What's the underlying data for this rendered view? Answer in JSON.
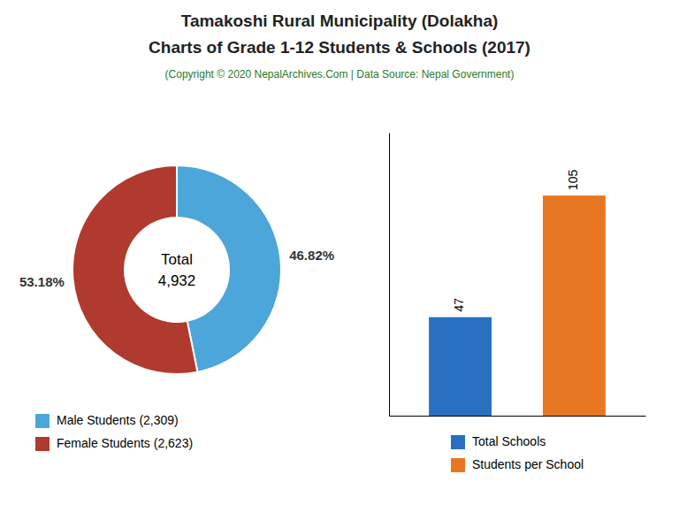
{
  "chart_data": [
    {
      "type": "donut",
      "title": "Tamakoshi Rural Municipality (Dolakha)",
      "subtitle": "Charts of Grade 1-12 Students & Schools (2017)",
      "annotations": [
        "(Copyright © 2020 NepalArchives.Com | Data Source: Nepal Government)",
        "Total",
        "4,932"
      ],
      "categories": [
        "Male Students (2,309)",
        "Female Students (2,623)"
      ],
      "values": [
        46.82,
        53.18
      ],
      "value_labels": [
        "46.82%",
        "53.18%"
      ],
      "colors": [
        "#4da6d9",
        "#b03a2e"
      ],
      "data_labels": true,
      "legend": "bottom"
    },
    {
      "type": "bar",
      "categories": [
        "Total Schools",
        "Students per School"
      ],
      "values": [
        47,
        105
      ],
      "colors": [
        "#2970c0",
        "#e87722"
      ],
      "ylim": [
        0,
        135
      ],
      "data_labels": true,
      "tick_labels": false,
      "legend": "bottom"
    }
  ]
}
